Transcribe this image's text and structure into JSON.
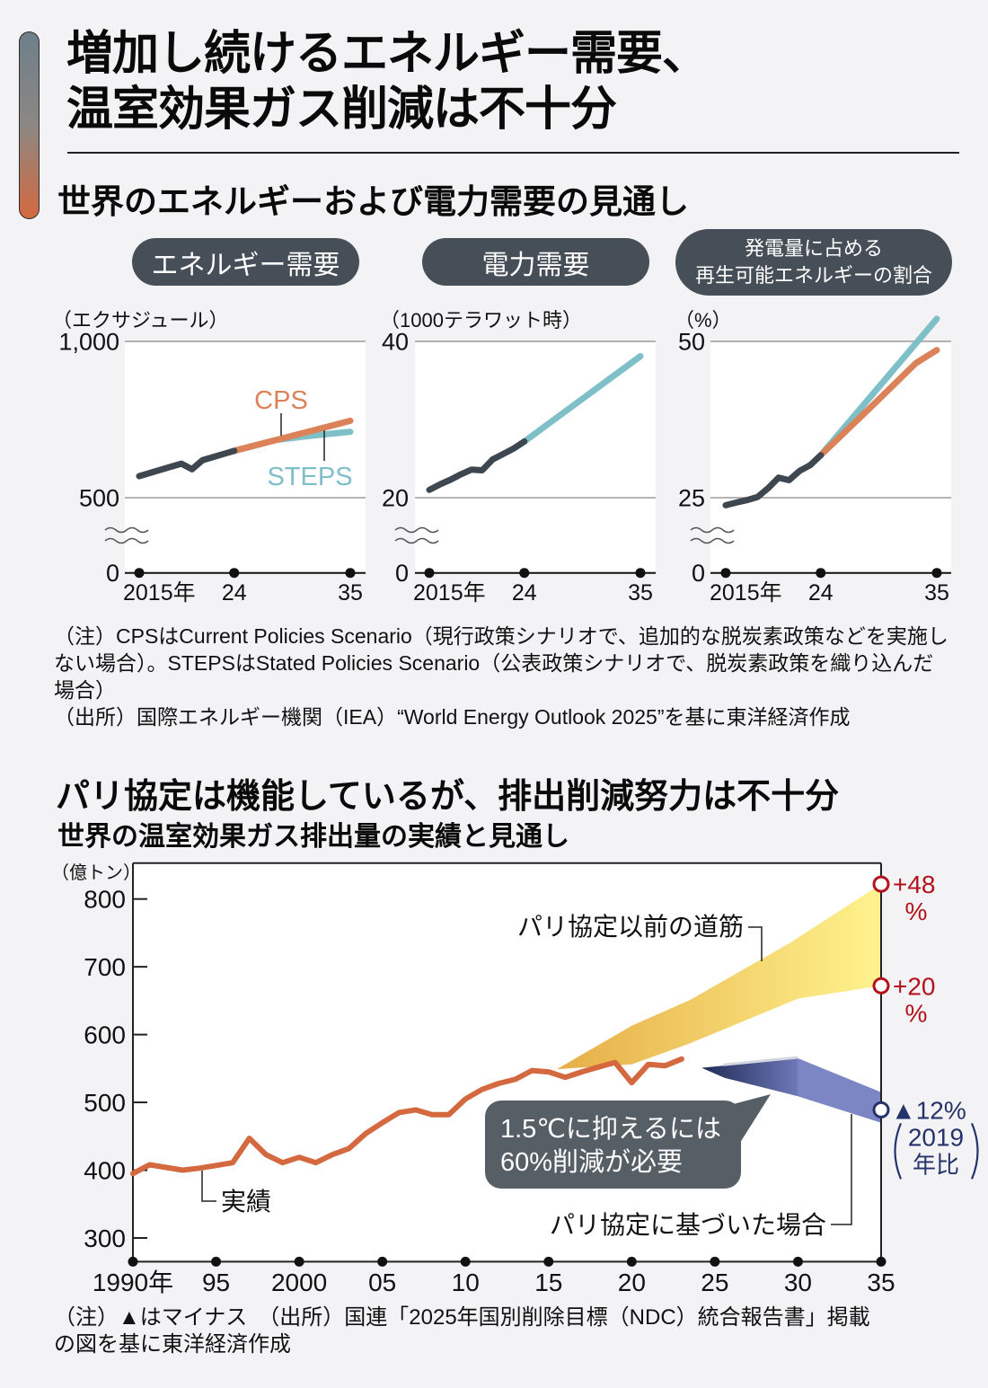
{
  "header": {
    "title_line1": "増加し続けるエネルギー需要、",
    "title_line2": "温室効果ガス削減は不十分"
  },
  "section1": {
    "title": "世界のエネルギーおよび電力需要の見通し",
    "note": "（注）CPSはCurrent Policies Scenario（現行政策シナリオで、追加的な脱炭素政策などを実施しない場合）。STEPSはStated Policies Scenario（公表政策シナリオで、脱炭素政策を織り込んだ場合）",
    "source": "（出所）国際エネルギー機関（IEA）“World Energy Outlook 2025”を基に東洋経済作成"
  },
  "section2": {
    "headline": "パリ協定は機能しているが、排出削減努力は不十分",
    "footnote": "（注）▲はマイナス　（出所）国連「2025年国別削除目標（NDC）統合報告書」掲載の図を基に東洋経済作成"
  },
  "colors": {
    "background": "#f3f3f5",
    "pill": "#464f57",
    "accent_top": "#6e7f8a",
    "accent_bottom": "#d4693f",
    "pre_paris_left": "#e6ae48",
    "pre_paris_right": "#fff38d",
    "paris_dark": "#1f2c57",
    "paris_mid": "#6d77b6",
    "paris_light": "#7d86c4",
    "positive": "#b3121c",
    "negative": "#26336b",
    "callout": "#565e66"
  },
  "chart_data": [
    {
      "type": "line",
      "title": "エネルギー需要",
      "ylabel": "（エクサジュール）",
      "ylim": [
        0,
        1000
      ],
      "y_axis_break": [
        0,
        500
      ],
      "grid": true,
      "y_ticks": [
        {
          "value": 1000,
          "label": "1,000"
        },
        {
          "value": 500,
          "label": "500"
        },
        {
          "value": 0,
          "label": "0"
        }
      ],
      "xlim": [
        2015,
        2035
      ],
      "x_ticks": [
        {
          "value": 2015,
          "label": "2015年"
        },
        {
          "value": 2024,
          "label": "24"
        },
        {
          "value": 2035,
          "label": "35"
        }
      ],
      "history": {
        "x": [
          2015,
          2016,
          2017,
          2018,
          2019,
          2020,
          2021,
          2022,
          2023,
          2024
        ],
        "y": [
          569,
          579,
          589,
          599,
          609,
          591,
          620,
          630,
          640,
          650
        ],
        "color": "#3e474f"
      },
      "projections": {
        "steps": {
          "name": "STEPS",
          "x": [
            2024,
            2028,
            2031,
            2035
          ],
          "y": [
            650,
            685,
            697,
            711
          ],
          "color": "#7ebfc8"
        },
        "cps": {
          "name": "CPS",
          "x": [
            2024,
            2035
          ],
          "y": [
            650,
            746
          ],
          "color": "#dc8259"
        }
      }
    },
    {
      "type": "line",
      "title": "電力需要",
      "ylabel": "（1000テラワット時）",
      "ylim": [
        0,
        40
      ],
      "y_axis_break": [
        0,
        20
      ],
      "grid": true,
      "y_ticks": [
        {
          "value": 40,
          "label": "40"
        },
        {
          "value": 20,
          "label": "20"
        },
        {
          "value": 0,
          "label": "0"
        }
      ],
      "xlim": [
        2015,
        2035
      ],
      "x_ticks": [
        {
          "value": 2015,
          "label": "2015年"
        },
        {
          "value": 2024,
          "label": "24"
        },
        {
          "value": 2035,
          "label": "35"
        }
      ],
      "history": {
        "x": [
          2015,
          2016,
          2017,
          2018,
          2019,
          2020,
          2021,
          2022,
          2023,
          2024
        ],
        "y": [
          21.0,
          21.7,
          22.3,
          23.0,
          23.6,
          23.5,
          24.9,
          25.6,
          26.3,
          27.2
        ],
        "color": "#3e474f"
      },
      "projections": {
        "steps": {
          "x": [
            2024,
            2035
          ],
          "y": [
            27.2,
            38.1
          ],
          "color": "#7ebfc8"
        }
      }
    },
    {
      "type": "line",
      "title": [
        "発電量に占める",
        "再生可能エネルギーの割合"
      ],
      "ylabel": "（%）",
      "ylim": [
        0,
        50
      ],
      "y_axis_break": [
        0,
        25
      ],
      "grid": true,
      "y_ticks": [
        {
          "value": 50,
          "label": "50"
        },
        {
          "value": 25,
          "label": "25"
        },
        {
          "value": 0,
          "label": "0"
        }
      ],
      "xlim": [
        2015,
        2035
      ],
      "x_ticks": [
        {
          "value": 2015,
          "label": "2015年"
        },
        {
          "value": 2024,
          "label": "24"
        },
        {
          "value": 2035,
          "label": "35"
        }
      ],
      "history": {
        "x": [
          2015,
          2016,
          2017,
          2018,
          2019,
          2020,
          2021,
          2022,
          2023,
          2024
        ],
        "y": [
          22.5,
          23.4,
          24.2,
          25.1,
          26.5,
          28.2,
          27.8,
          29.3,
          30.2,
          31.8
        ],
        "color": "#3e474f"
      },
      "projections": {
        "steps": {
          "x": [
            2024,
            2035
          ],
          "y": [
            31.8,
            53.6
          ],
          "color": "#7ebfc8"
        },
        "cps": {
          "x": [
            2024,
            2029,
            2033,
            2035
          ],
          "y": [
            31.8,
            39.9,
            46.5,
            48.6
          ],
          "color": "#dc8259"
        }
      }
    },
    {
      "type": "line",
      "title": "世界の温室効果ガス排出量の実績と見通し",
      "ylabel": "（億トン）",
      "ylim": [
        265,
        853
      ],
      "grid": false,
      "y_ticks": [
        {
          "value": 800,
          "label": "800"
        },
        {
          "value": 700,
          "label": "700"
        },
        {
          "value": 600,
          "label": "600"
        },
        {
          "value": 500,
          "label": "500"
        },
        {
          "value": 400,
          "label": "400"
        },
        {
          "value": 300,
          "label": "300"
        }
      ],
      "xlim": [
        1990,
        2035
      ],
      "x_ticks": [
        {
          "value": 1990,
          "label": "1990年"
        },
        {
          "value": 1995,
          "label": "95"
        },
        {
          "value": 2000,
          "label": "2000"
        },
        {
          "value": 2005,
          "label": "05"
        },
        {
          "value": 2010,
          "label": "10"
        },
        {
          "value": 2015,
          "label": "15"
        },
        {
          "value": 2020,
          "label": "20"
        },
        {
          "value": 2025,
          "label": "25"
        },
        {
          "value": 2030,
          "label": "30"
        },
        {
          "value": 2035,
          "label": "35"
        }
      ],
      "history": {
        "label": "実績",
        "x": [
          1990,
          1991,
          1992,
          1993,
          1994,
          1995,
          1996,
          1997,
          1998,
          1999,
          2000,
          2001,
          2002,
          2003,
          2004,
          2005,
          2006,
          2007,
          2008,
          2009,
          2010,
          2011,
          2012,
          2013,
          2014,
          2015,
          2016,
          2017,
          2018,
          2019,
          2020,
          2021,
          2022,
          2023
        ],
        "y": [
          395,
          408,
          404,
          400,
          403,
          407,
          411,
          447,
          423,
          411,
          419,
          411,
          423,
          432,
          454,
          470,
          485,
          489,
          482,
          482,
          505,
          519,
          528,
          534,
          547,
          545,
          537,
          545,
          552,
          559,
          529,
          556,
          554,
          564
        ],
        "color": "#d4683f"
      },
      "bands": {
        "pre_paris": {
          "label": "パリ協定以前の道筋",
          "upper": {
            "x": [
              2015.5,
              2020,
              2023.5,
              2029.5,
              2035
            ],
            "y": [
              549,
              613,
              651,
              735,
              822
            ]
          },
          "lower": {
            "x": [
              2015.5,
              2020,
              2023.5,
              2030,
              2035
            ],
            "y": [
              549,
              556,
              587,
              653,
              672
            ]
          },
          "end_markers": [
            {
              "value": 822,
              "label": "+48",
              "unit": "%"
            },
            {
              "value": 672,
              "label": "+20",
              "unit": "%"
            }
          ]
        },
        "paris": {
          "label": "パリ協定に基づいた場合",
          "upper": {
            "x": [
              2024.2,
              2030,
              2035
            ],
            "y": [
              551,
              565,
              515
            ]
          },
          "lower": {
            "x": [
              2024.2,
              2025.6,
              2030,
              2035
            ],
            "y": [
              551,
              536,
              509,
              470
            ]
          },
          "end_marker": {
            "value": 489,
            "label": "▲12%",
            "note_line1": "2019",
            "note_line2": "年比"
          }
        }
      },
      "callout": {
        "line1": "1.5℃に抑えるには",
        "line2": "60%削減が必要"
      }
    }
  ]
}
